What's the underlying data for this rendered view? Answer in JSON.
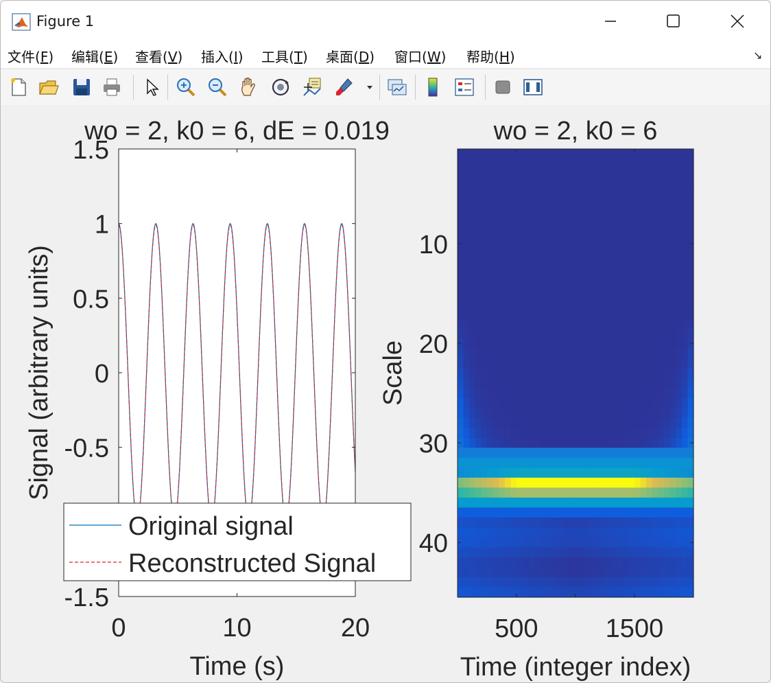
{
  "window": {
    "title": "Figure 1",
    "menu": [
      {
        "label": "文件(",
        "key": "F",
        "end": ")"
      },
      {
        "label": "编辑(",
        "key": "E",
        "end": ")"
      },
      {
        "label": "查看(",
        "key": "V",
        "end": ")"
      },
      {
        "label": "插入(",
        "key": "I",
        "end": ")"
      },
      {
        "label": "工具(",
        "key": "T",
        "end": ")"
      },
      {
        "label": "桌面(",
        "key": "D",
        "end": ")"
      },
      {
        "label": "窗口(",
        "key": "W",
        "end": ")"
      },
      {
        "label": "帮助(",
        "key": "H",
        "end": ")"
      }
    ],
    "toolbar_icons": [
      "new-figure-icon",
      "open-file-icon",
      "save-icon",
      "print-icon",
      "pointer-icon",
      "zoom-in-icon",
      "zoom-out-icon",
      "pan-icon",
      "rotate-3d-icon",
      "data-cursor-icon",
      "brush-icon",
      "link-plot-icon",
      "colorbar-icon",
      "legend-icon",
      "hide-plot-tools-icon",
      "show-plot-tools-icon"
    ]
  },
  "chart_data": [
    {
      "type": "line",
      "title": "wo = 2, k0 = 6, dE = 0.019",
      "xlabel": "Time (s)",
      "ylabel": "Signal (arbitrary units)",
      "xlim": [
        0,
        20
      ],
      "ylim": [
        -1.5,
        1.5
      ],
      "xticks": [
        "0",
        "10",
        "20"
      ],
      "yticks": [
        "-1.5",
        "-1",
        "-0.5",
        "0",
        "0.5",
        "1",
        "1.5"
      ],
      "x_function": "cos(2*t)",
      "period": 3.1416,
      "series": [
        {
          "name": "Original signal",
          "color": "#0072bd",
          "style": "solid",
          "amplitude": 1.0
        },
        {
          "name": "Reconstructed Signal",
          "color": "#d62728",
          "style": "dashed",
          "amplitude": 0.99
        }
      ],
      "legend": {
        "placement": "bottom-left",
        "entries": [
          "Original signal",
          "Reconstructed Signal"
        ]
      }
    },
    {
      "type": "heatmap",
      "title": "wo = 2, k0 = 6",
      "xlabel": "Time (integer index)",
      "ylabel": "Scale",
      "xlim": [
        1,
        2000
      ],
      "ylim": [
        0.5,
        45.5
      ],
      "xticks": [
        "500",
        "1500"
      ],
      "yticks": [
        "10",
        "20",
        "30",
        "40"
      ],
      "y_direction": "reverse",
      "colormap": "parula",
      "peak_scale": 34,
      "rows": 45
    }
  ]
}
